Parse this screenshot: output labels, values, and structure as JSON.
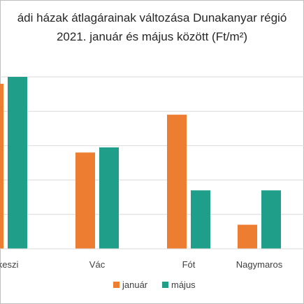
{
  "chart_data": {
    "type": "bar",
    "title_line1": "ádi házak átlagárainak változása Dunakanyar régió",
    "title_line2": "2021. január és május között (Ft/m²)",
    "categories": [
      "akeszi",
      "Vác",
      "Fót",
      "Nagymaros"
    ],
    "series": [
      {
        "name": "január",
        "color": "#ed7d31",
        "values": [
          48,
          28,
          39,
          7
        ]
      },
      {
        "name": "május",
        "color": "#1f9e89",
        "values": [
          50,
          29.5,
          17,
          17
        ]
      }
    ],
    "ylim": [
      0,
      50
    ],
    "y_gridlines": [
      10,
      20,
      30,
      40,
      50
    ],
    "grid": true,
    "legend_position": "bottom"
  }
}
